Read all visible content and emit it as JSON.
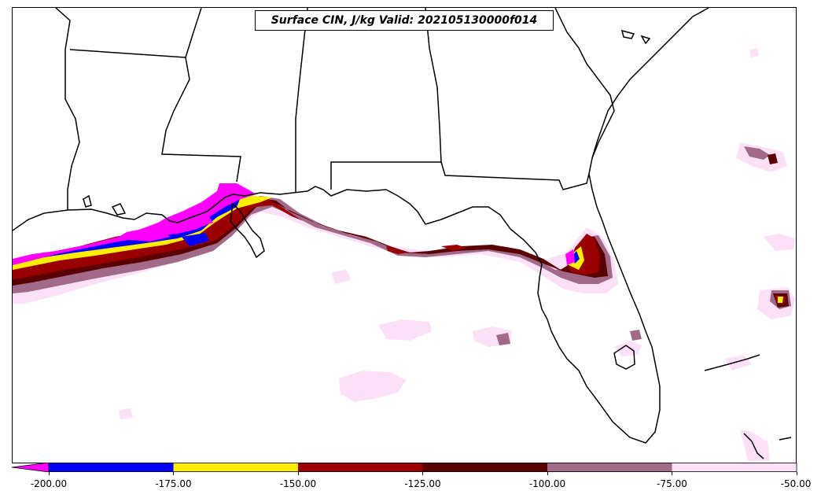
{
  "title": "Surface CIN, J/kg Valid: 202105130000f014",
  "colorbar": {
    "extend_color": "#ff00ff",
    "bins": [
      {
        "from": -200,
        "to": -175,
        "color": "#0000ff"
      },
      {
        "from": -175,
        "to": -150,
        "color": "#ffee00"
      },
      {
        "from": -150,
        "to": -125,
        "color": "#9b0000"
      },
      {
        "from": -125,
        "to": -100,
        "color": "#5a0000"
      },
      {
        "from": -100,
        "to": -75,
        "color": "#a06a88"
      },
      {
        "from": -75,
        "to": -50,
        "color": "#fce0f8"
      }
    ],
    "tick_labels": [
      "-200.00",
      "-175.00",
      "-150.00",
      "-125.00",
      "-100.00",
      "-75.00",
      "-50.00"
    ]
  },
  "map": {
    "field_colors": {
      "magenta": "#ff00ff",
      "blue": "#0000ff",
      "yellow": "#ffee00",
      "red": "#9b0000",
      "darkred": "#5a0000",
      "mauve": "#a06a88",
      "pink": "#fce0f8"
    },
    "outline_color": "#000000"
  }
}
